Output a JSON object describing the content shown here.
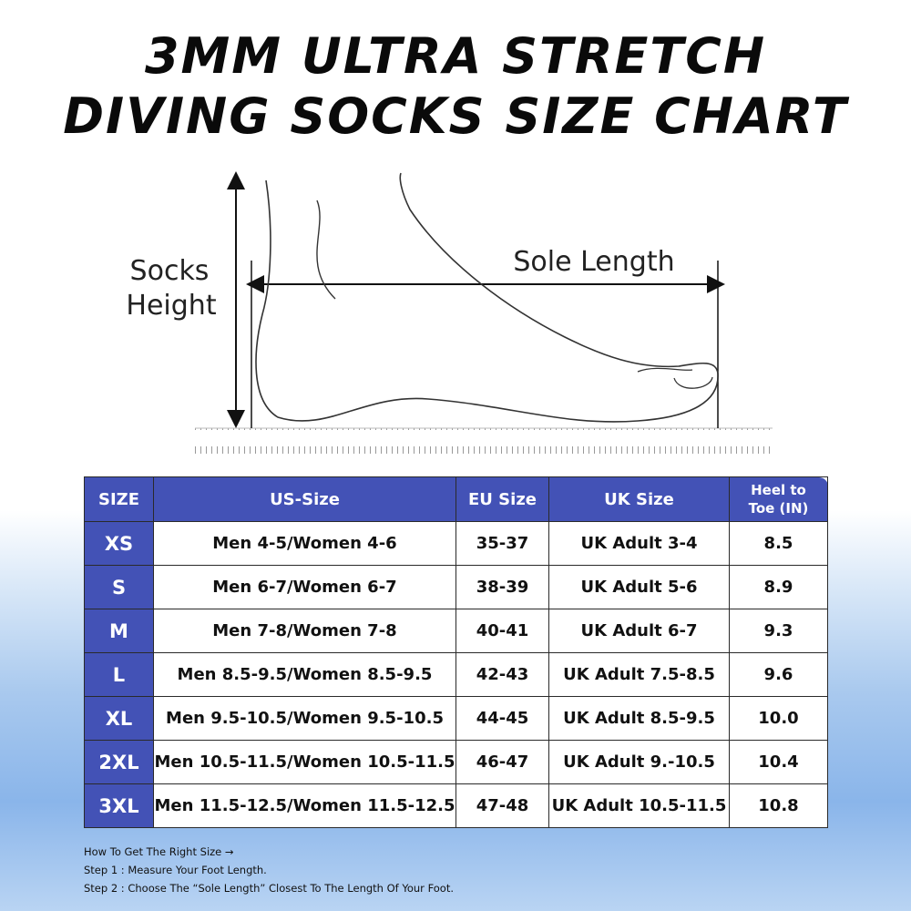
{
  "title": {
    "line1": "3MM ULTRA STRETCH",
    "line2": "DIVING SOCKS SIZE CHART"
  },
  "diagram": {
    "height_label": {
      "line1": "Socks",
      "line2": "Height"
    },
    "length_label": "Sole Length"
  },
  "table": {
    "header": [
      "SIZE",
      "US-Size",
      "EU Size",
      "UK Size",
      "Heel to Toe (IN)"
    ],
    "rows": [
      [
        "XS",
        "Men 4-5/Women 4-6",
        "35-37",
        "UK Adult 3-4",
        "8.5"
      ],
      [
        "S",
        "Men 6-7/Women 6-7",
        "38-39",
        "UK Adult 5-6",
        "8.9"
      ],
      [
        "M",
        "Men 7-8/Women 7-8",
        "40-41",
        "UK Adult 6-7",
        "9.3"
      ],
      [
        "L",
        "Men 8.5-9.5/Women 8.5-9.5",
        "42-43",
        "UK Adult 7.5-8.5",
        "9.6"
      ],
      [
        "XL",
        "Men 9.5-10.5/Women 9.5-10.5",
        "44-45",
        "UK Adult 8.5-9.5",
        "10.0"
      ],
      [
        "2XL",
        "Men 10.5-11.5/Women 10.5-11.5",
        "46-47",
        "UK Adult 9.-10.5",
        "10.4"
      ],
      [
        "3XL",
        "Men 11.5-12.5/Women 11.5-12.5",
        "47-48",
        "UK Adult 10.5-11.5",
        "10.8"
      ]
    ]
  },
  "instructions": [
    "How To Get The Right Size →",
    "Step 1  : Measure Your Foot Length.",
    "Step 2 : Choose The “Sole Length” Closest To The Length Of Your Foot."
  ]
}
